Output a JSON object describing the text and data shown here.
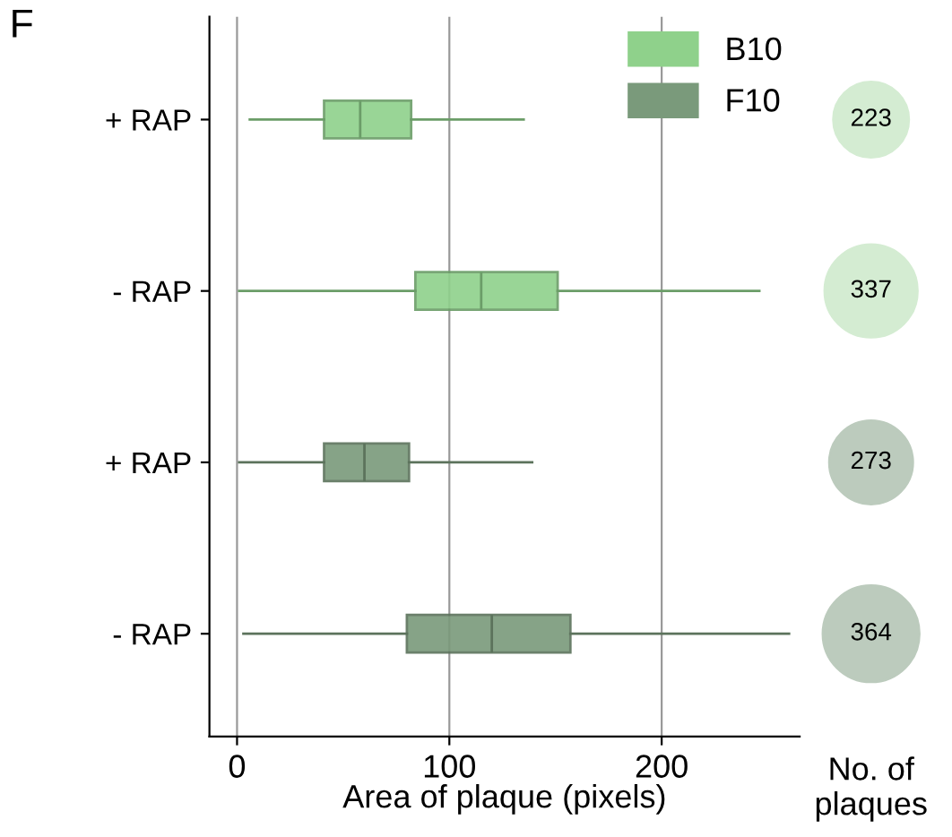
{
  "chart_data": [
    {
      "type": "box",
      "title": "F",
      "orientation": "horizontal",
      "categories": [
        "+ RAP",
        "- RAP",
        "+ RAP",
        "- RAP"
      ],
      "xlabel": "Area of plaque (pixels)",
      "xlim": [
        -13,
        265
      ],
      "xticks": [
        0,
        100,
        200
      ],
      "grid": "x",
      "legend": "top right",
      "series": [
        {
          "name": "B10",
          "color": "#8fd18b",
          "boxes": [
            {
              "low": 6,
              "q1": 41,
              "median": 58,
              "q3": 82,
              "high": 135
            },
            {
              "low": 1,
              "q1": 84,
              "median": 115,
              "q3": 151,
              "high": 246
            },
            null,
            null
          ]
        },
        {
          "name": "F10",
          "color": "#7a9a7b",
          "boxes": [
            null,
            null,
            {
              "low": 1,
              "q1": 41,
              "median": 60,
              "q3": 81,
              "high": 139
            },
            {
              "low": 3,
              "q1": 80,
              "median": 120,
              "q3": 157,
              "high": 260
            }
          ]
        }
      ]
    },
    {
      "type": "other",
      "xlabel": "No. of plaques",
      "values": [
        223,
        337,
        273,
        364
      ],
      "colors": [
        "#d4ecd2",
        "#d4ecd2",
        "#bccbbd",
        "#bccbbd"
      ],
      "data_labels": true
    }
  ]
}
